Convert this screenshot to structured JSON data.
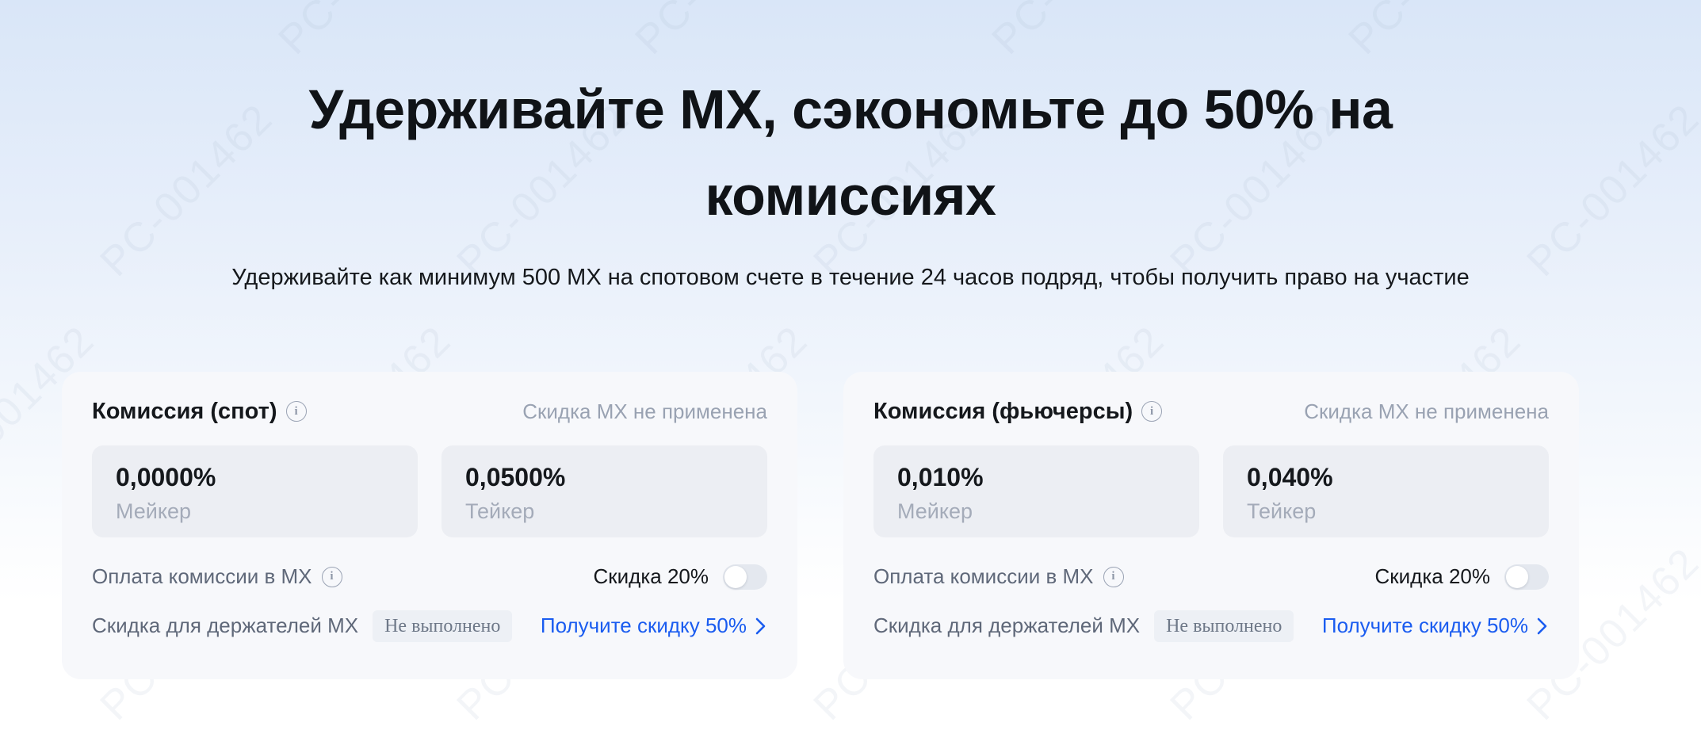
{
  "watermark": {
    "text": "PC-001462"
  },
  "icons": {
    "info": "i"
  },
  "colors": {
    "accent_blue": "#1a5cf0",
    "card_bg": "#f7f8fb",
    "fee_box_bg": "#eceef3",
    "muted_text": "#99a2b2",
    "bg_top": "#d9e6f8"
  },
  "hero": {
    "title": "Удерживайте MX, сэкономьте до 50% на комиссиях",
    "subtitle": "Удерживайте как минимум 500 MX на спотовом счете в течение 24 часов подряд, чтобы получить право на участие"
  },
  "cards": [
    {
      "title": "Комиссия (спот)",
      "status": "Скидка MX не применена",
      "fees": [
        {
          "value": "0,0000%",
          "label": "Мейкер"
        },
        {
          "value": "0,0500%",
          "label": "Тейкер"
        }
      ],
      "pay_label": "Оплата комиссии в MX",
      "discount_label": "Скидка 20%",
      "toggle_on": false,
      "holder_label": "Скидка для держателей MX",
      "holder_badge": "Не выполнено",
      "link_label": "Получите скидку 50%"
    },
    {
      "title": "Комиссия (фьючерсы)",
      "status": "Скидка MX не применена",
      "fees": [
        {
          "value": "0,010%",
          "label": "Мейкер"
        },
        {
          "value": "0,040%",
          "label": "Тейкер"
        }
      ],
      "pay_label": "Оплата комиссии в MX",
      "discount_label": "Скидка 20%",
      "toggle_on": false,
      "holder_label": "Скидка для держателей MX",
      "holder_badge": "Не выполнено",
      "link_label": "Получите скидку 50%"
    }
  ]
}
